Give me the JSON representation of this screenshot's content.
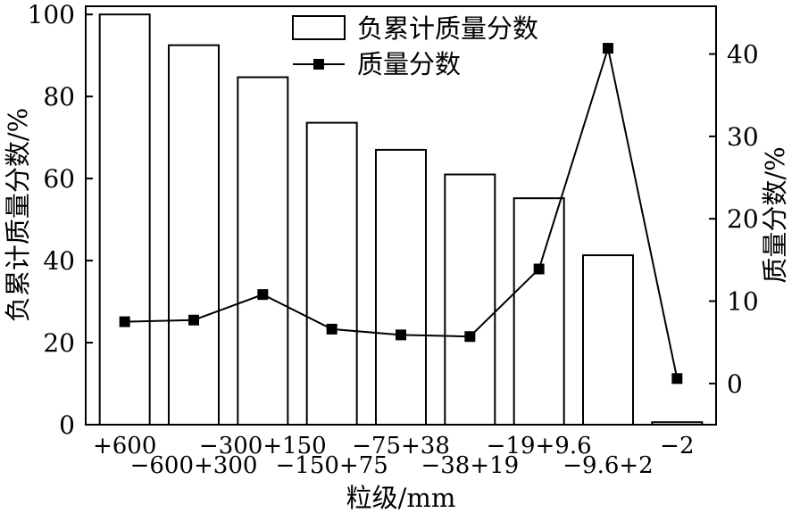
{
  "chart_data": {
    "type": "bar+line",
    "categories": [
      "+600",
      "−600+300",
      "−300+150",
      "−150+75",
      "−75+38",
      "−38+19",
      "−19+9.6",
      "−9.6+2",
      "−2"
    ],
    "xlabel": "粒级/mm",
    "series": [
      {
        "name": "负累计质量分数",
        "kind": "bar",
        "axis": "left",
        "values": [
          100,
          92.5,
          84.7,
          73.6,
          67.0,
          61.0,
          55.2,
          41.3,
          0.6
        ]
      },
      {
        "name": "质量分数",
        "kind": "line",
        "marker": "square",
        "axis": "right",
        "values": [
          7.5,
          7.7,
          10.8,
          6.6,
          5.9,
          5.7,
          13.9,
          40.7,
          0.6
        ]
      }
    ],
    "left_axis": {
      "label": "负累计质量分数/%",
      "ylim": [
        0,
        102
      ],
      "ticks": [
        0,
        20,
        40,
        60,
        80,
        100
      ],
      "tick_labels": [
        "0",
        "20",
        "40",
        "60",
        "80",
        "100"
      ]
    },
    "right_axis": {
      "label": "质量分数/%",
      "ylim": [
        -5,
        45.8
      ],
      "ticks": [
        0,
        10,
        20,
        30,
        40
      ],
      "tick_labels": [
        "0",
        "10",
        "20",
        "30",
        "40"
      ]
    },
    "legend": {
      "placement": "top-center"
    },
    "grid": false,
    "colors": {
      "bar_fill": "#ffffff",
      "bar_stroke": "#000000",
      "line": "#000000",
      "marker": "#000000"
    }
  }
}
